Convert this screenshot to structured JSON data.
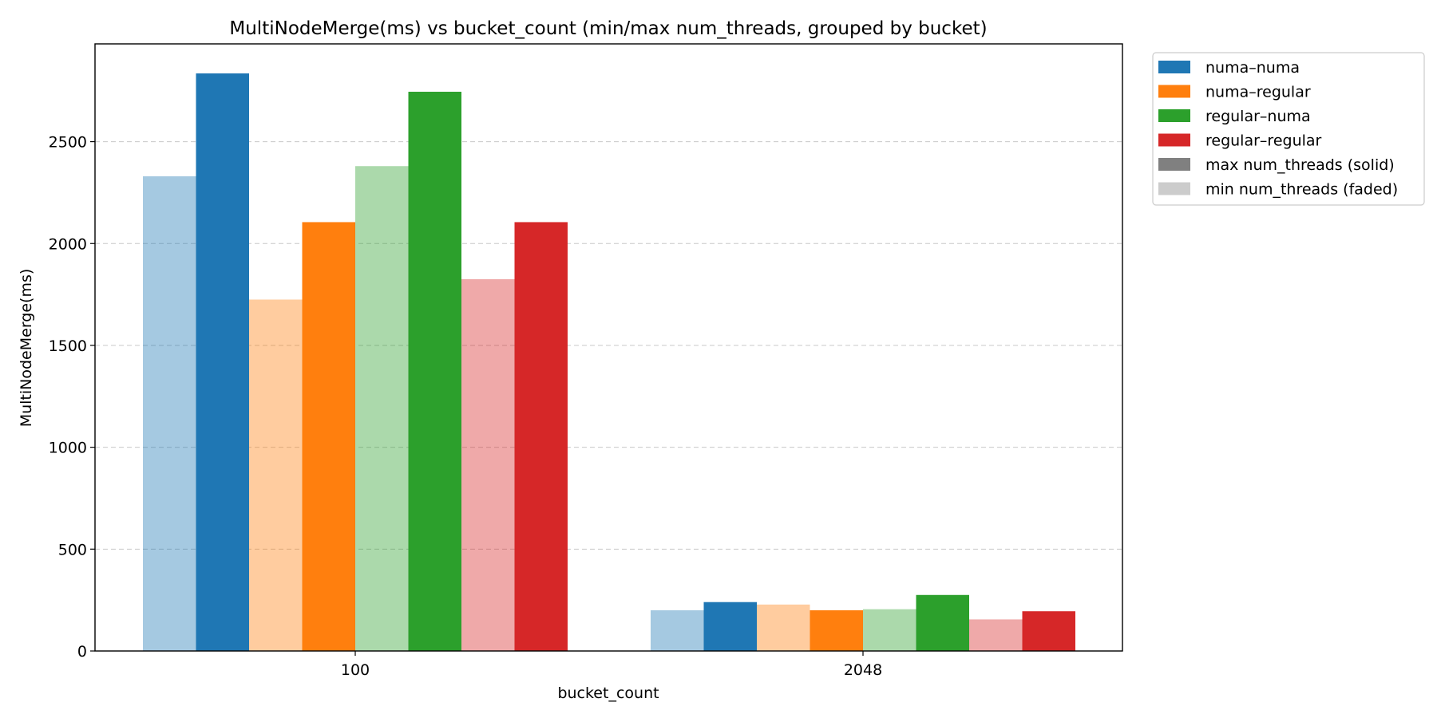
{
  "chart_data": {
    "type": "bar",
    "title": "MultiNodeMerge(ms) vs bucket_count (min/max num_threads, grouped by bucket)",
    "xlabel": "bucket_count",
    "ylabel": "MultiNodeMerge(ms)",
    "categories": [
      "100",
      "2048"
    ],
    "ylim": [
      0,
      2980
    ],
    "yticks": [
      0,
      500,
      1000,
      1500,
      2000,
      2500
    ],
    "grid": "y-dashed",
    "legend_position": "outside-top-right",
    "series": [
      {
        "name": "numa–numa",
        "variant": "min",
        "color": "#1f77b4",
        "values": [
          2330,
          200
        ]
      },
      {
        "name": "numa–numa",
        "variant": "max",
        "color": "#1f77b4",
        "values": [
          2835,
          240
        ]
      },
      {
        "name": "numa–regular",
        "variant": "min",
        "color": "#ff7f0e",
        "values": [
          1725,
          228
        ]
      },
      {
        "name": "numa–regular",
        "variant": "max",
        "color": "#ff7f0e",
        "values": [
          2105,
          200
        ]
      },
      {
        "name": "regular–numa",
        "variant": "min",
        "color": "#2ca02c",
        "values": [
          2380,
          205
        ]
      },
      {
        "name": "regular–numa",
        "variant": "max",
        "color": "#2ca02c",
        "values": [
          2745,
          275
        ]
      },
      {
        "name": "regular–regular",
        "variant": "min",
        "color": "#d62728",
        "values": [
          1825,
          155
        ]
      },
      {
        "name": "regular–regular",
        "variant": "max",
        "color": "#d62728",
        "values": [
          2105,
          195
        ]
      }
    ],
    "legend": [
      {
        "label": "numa–numa",
        "color": "#1f77b4"
      },
      {
        "label": "numa–regular",
        "color": "#ff7f0e"
      },
      {
        "label": "regular–numa",
        "color": "#2ca02c"
      },
      {
        "label": "regular–regular",
        "color": "#d62728"
      },
      {
        "label": "max num_threads (solid)",
        "color": "#808080"
      },
      {
        "label": "min num_threads (faded)",
        "color": "#cccccc"
      }
    ],
    "faded_opacity": 0.4
  }
}
